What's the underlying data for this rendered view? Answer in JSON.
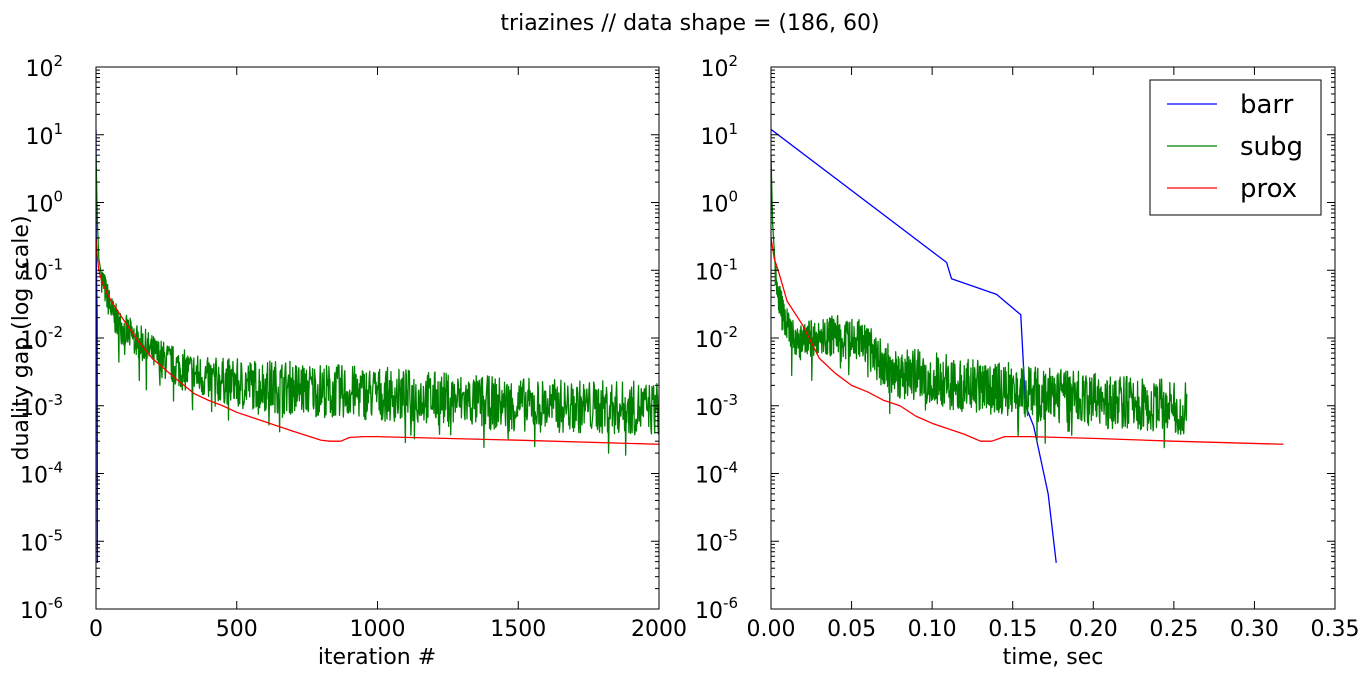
{
  "figure": {
    "suptitle": "triazines // data shape = (186, 60)"
  },
  "colors": {
    "barr": "#0000ff",
    "subg": "#008000",
    "prox": "#ff0000"
  },
  "chart_data": [
    {
      "type": "line",
      "xlabel": "iteration #",
      "ylabel": "duality gap (log scale)",
      "yscale": "log",
      "xlim": [
        0,
        2000
      ],
      "ylim": [
        1e-06,
        100
      ],
      "xticks": [
        "0",
        "500",
        "1000",
        "1500",
        "2000"
      ],
      "yticks": [
        "10-6",
        "10-5",
        "10-4",
        "10-3",
        "10-2",
        "10-1",
        "100",
        "101",
        "102"
      ],
      "series": [
        {
          "name": "barr",
          "x": [
            0,
            1,
            2,
            3,
            4,
            5
          ],
          "y": [
            12,
            0.13,
            0.075,
            0.044,
            0.022,
            4.8e-06
          ]
        },
        {
          "name": "subg",
          "noisy": true,
          "x": [
            0,
            5,
            10,
            20,
            40,
            60,
            80,
            100,
            150,
            200,
            250,
            300,
            400,
            500,
            600,
            800,
            1000,
            1200,
            1400,
            1600,
            1800,
            2000
          ],
          "y": [
            5,
            0.5,
            0.15,
            0.08,
            0.04,
            0.022,
            0.016,
            0.013,
            0.009,
            0.006,
            0.0045,
            0.0035,
            0.0025,
            0.0022,
            0.002,
            0.0017,
            0.0015,
            0.0013,
            0.0011,
            0.001,
            0.00095,
            0.0009
          ]
        },
        {
          "name": "prox",
          "x": [
            0,
            5,
            10,
            20,
            40,
            60,
            80,
            100,
            150,
            200,
            250,
            300,
            350,
            400,
            450,
            500,
            600,
            700,
            800,
            830,
            870,
            900,
            950,
            1000,
            1500,
            2000
          ],
          "y": [
            0.3,
            0.15,
            0.1,
            0.07,
            0.045,
            0.032,
            0.024,
            0.018,
            0.009,
            0.005,
            0.0033,
            0.0022,
            0.0015,
            0.0012,
            0.001,
            0.0008,
            0.00058,
            0.00042,
            0.00031,
            0.0003,
            0.0003,
            0.00034,
            0.00035,
            0.00035,
            0.00031,
            0.00027
          ]
        }
      ]
    },
    {
      "type": "line",
      "xlabel": "time, sec",
      "ylabel": "",
      "yscale": "log",
      "xlim": [
        0,
        0.35
      ],
      "ylim": [
        1e-06,
        100
      ],
      "xticks": [
        "0.00",
        "0.05",
        "0.10",
        "0.15",
        "0.20",
        "0.25",
        "0.30",
        "0.35"
      ],
      "yticks": [
        "10-6",
        "10-5",
        "10-4",
        "10-3",
        "10-2",
        "10-1",
        "100",
        "101",
        "102"
      ],
      "legend": {
        "position": "top-right",
        "entries": [
          "barr",
          "subg",
          "prox"
        ]
      },
      "series": [
        {
          "name": "barr",
          "x": [
            0,
            0.109,
            0.112,
            0.14,
            0.155,
            0.158,
            0.163,
            0.172,
            0.177
          ],
          "y": [
            12,
            0.13,
            0.075,
            0.044,
            0.022,
            0.001,
            0.0005,
            5e-05,
            4.8e-06
          ]
        },
        {
          "name": "subg",
          "noisy": true,
          "x": [
            0,
            0.001,
            0.003,
            0.005,
            0.008,
            0.012,
            0.015,
            0.02,
            0.03,
            0.042,
            0.043,
            0.045,
            0.055,
            0.06,
            0.07,
            0.08,
            0.1,
            0.12,
            0.15,
            0.18,
            0.2,
            0.22,
            0.24,
            0.258
          ],
          "y": [
            5,
            0.5,
            0.08,
            0.04,
            0.02,
            0.012,
            0.009,
            0.0095,
            0.0102,
            0.011,
            0.007,
            0.009,
            0.01,
            0.007,
            0.004,
            0.003,
            0.0025,
            0.002,
            0.0017,
            0.0014,
            0.0012,
            0.0011,
            0.001,
            0.0009
          ]
        },
        {
          "name": "prox",
          "x": [
            0,
            0.002,
            0.005,
            0.01,
            0.02,
            0.03,
            0.04,
            0.05,
            0.06,
            0.07,
            0.08,
            0.09,
            0.1,
            0.12,
            0.13,
            0.137,
            0.145,
            0.16,
            0.2,
            0.25,
            0.318
          ],
          "y": [
            0.3,
            0.15,
            0.09,
            0.035,
            0.015,
            0.005,
            0.003,
            0.002,
            0.0016,
            0.0012,
            0.001,
            0.0007,
            0.00055,
            0.00038,
            0.0003,
            0.0003,
            0.00035,
            0.00035,
            0.00033,
            0.0003,
            0.00027
          ]
        }
      ]
    }
  ]
}
